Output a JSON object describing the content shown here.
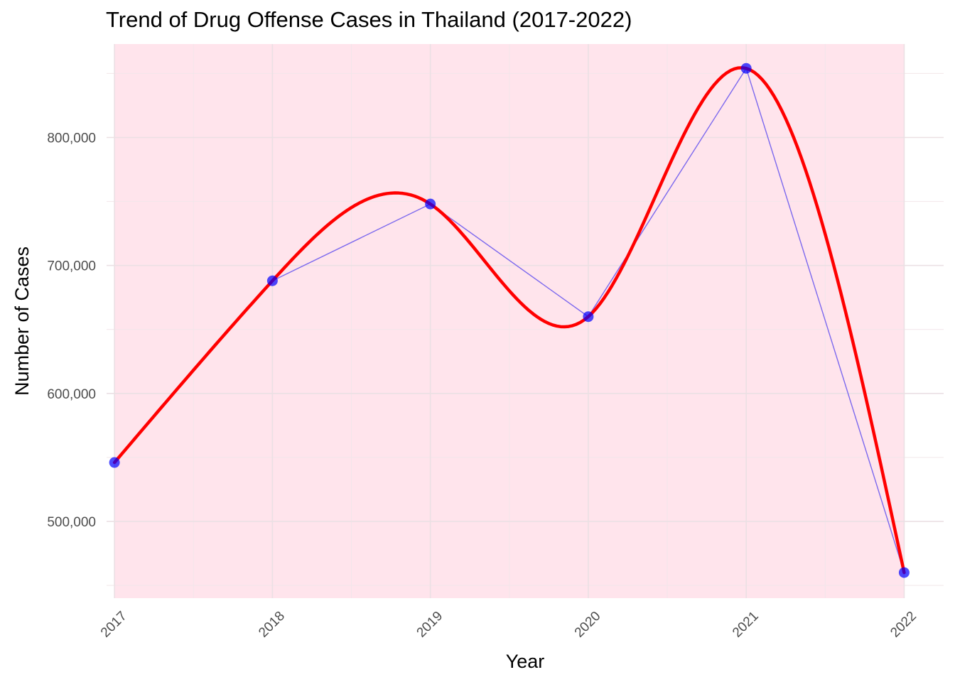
{
  "chart_data": {
    "type": "line",
    "title": "Trend of Drug Offense Cases in Thailand (2017-2022)",
    "xlabel": "Year",
    "ylabel": "Number of Cases",
    "categories": [
      "2017",
      "2018",
      "2019",
      "2020",
      "2021",
      "2022"
    ],
    "x": [
      2017,
      2018,
      2019,
      2020,
      2021,
      2022
    ],
    "series": [
      {
        "values": [
          546000,
          688000,
          748000,
          660000,
          854000,
          460000
        ],
        "style": "line-with-points",
        "line_color": "#7B68EE",
        "point_color": "#0000FF"
      },
      {
        "values": [
          546000,
          688000,
          748000,
          660000,
          854000,
          460000
        ],
        "style": "smooth-curve",
        "line_color": "#FF0000"
      }
    ],
    "y_ticks": [
      500000,
      600000,
      700000,
      800000
    ],
    "y_tick_labels": [
      "500,000",
      "600,000",
      "700,000",
      "800,000"
    ],
    "xlim": [
      2016.95,
      2022.25
    ],
    "ylim": [
      440000,
      873000
    ],
    "x_range_shaded": [
      2017,
      2022
    ],
    "shade_color": "#FFE4EC",
    "grid": true,
    "legend": "none",
    "x_tick_rotation_deg": -45
  }
}
